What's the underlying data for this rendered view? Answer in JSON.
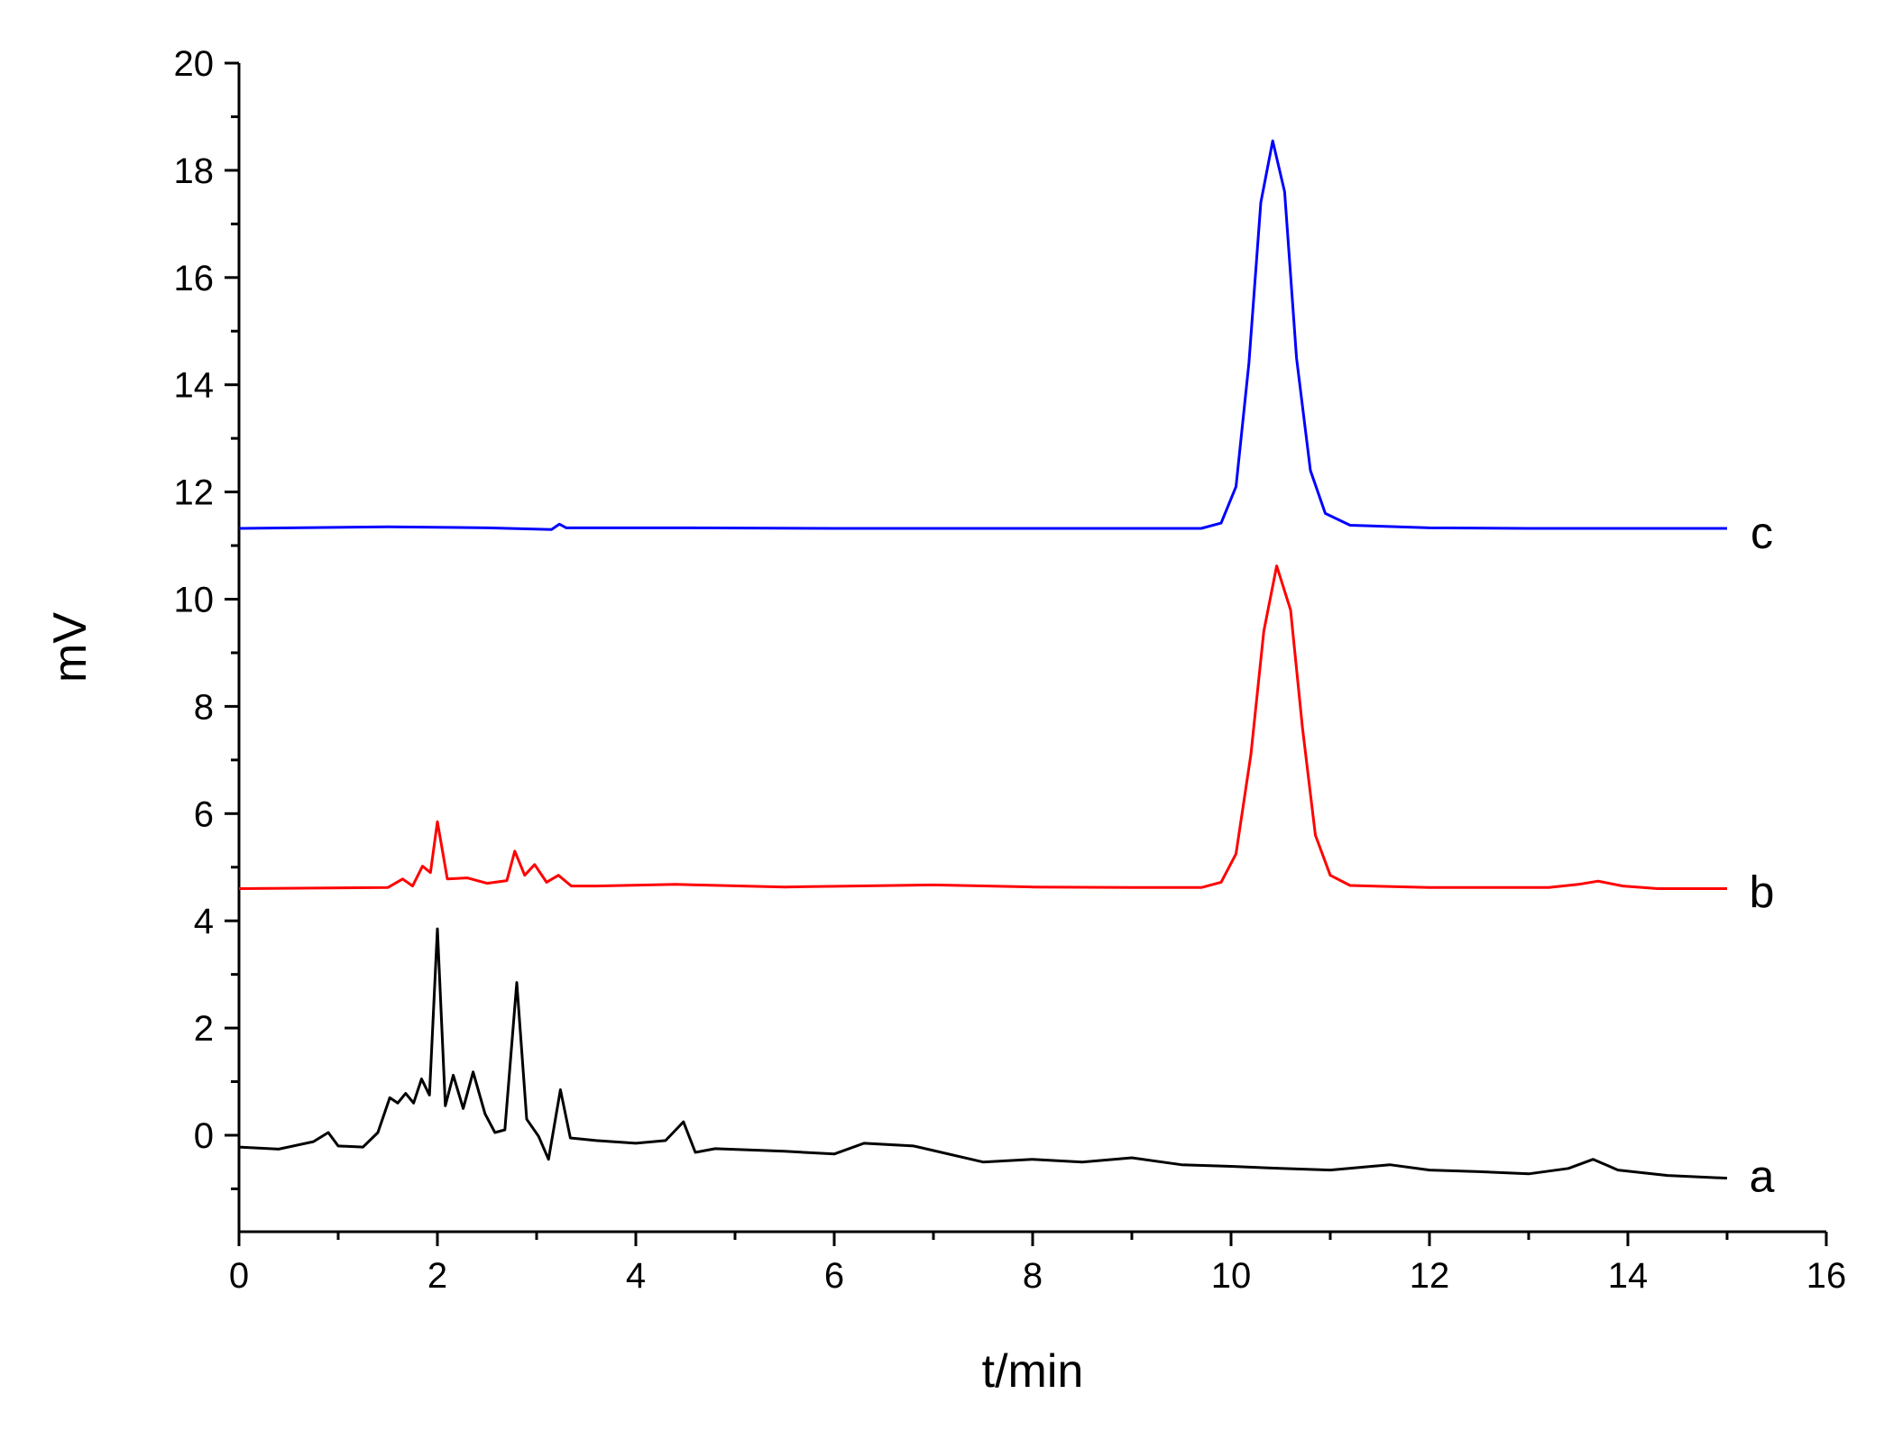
{
  "chart_data": {
    "type": "line",
    "title": "",
    "xlabel": "t/min",
    "ylabel": "mV",
    "xlim": [
      0,
      16
    ],
    "ylim": [
      -1.8,
      20
    ],
    "x_ticks": [
      0,
      2,
      4,
      6,
      8,
      10,
      12,
      14,
      16
    ],
    "y_ticks": [
      0,
      2,
      4,
      6,
      8,
      10,
      12,
      14,
      16,
      18,
      20
    ],
    "grid": false,
    "legend": "none",
    "series": [
      {
        "name": "a",
        "color": "#000000",
        "points": [
          [
            0,
            -0.22
          ],
          [
            0.4,
            -0.26
          ],
          [
            0.75,
            -0.12
          ],
          [
            0.9,
            0.05
          ],
          [
            1.0,
            -0.2
          ],
          [
            1.25,
            -0.22
          ],
          [
            1.4,
            0.05
          ],
          [
            1.52,
            0.7
          ],
          [
            1.6,
            0.6
          ],
          [
            1.68,
            0.78
          ],
          [
            1.76,
            0.6
          ],
          [
            1.84,
            1.05
          ],
          [
            1.92,
            0.75
          ],
          [
            2.0,
            3.85
          ],
          [
            2.08,
            0.55
          ],
          [
            2.16,
            1.12
          ],
          [
            2.26,
            0.5
          ],
          [
            2.36,
            1.18
          ],
          [
            2.48,
            0.4
          ],
          [
            2.58,
            0.05
          ],
          [
            2.68,
            0.1
          ],
          [
            2.8,
            2.85
          ],
          [
            2.9,
            0.3
          ],
          [
            3.02,
            -0.02
          ],
          [
            3.12,
            -0.45
          ],
          [
            3.24,
            0.85
          ],
          [
            3.34,
            -0.05
          ],
          [
            3.6,
            -0.1
          ],
          [
            4.0,
            -0.15
          ],
          [
            4.3,
            -0.1
          ],
          [
            4.48,
            0.25
          ],
          [
            4.6,
            -0.32
          ],
          [
            4.8,
            -0.25
          ],
          [
            5.5,
            -0.3
          ],
          [
            6.0,
            -0.35
          ],
          [
            6.3,
            -0.15
          ],
          [
            6.8,
            -0.2
          ],
          [
            7.5,
            -0.5
          ],
          [
            8.0,
            -0.45
          ],
          [
            8.5,
            -0.5
          ],
          [
            9.0,
            -0.42
          ],
          [
            9.5,
            -0.55
          ],
          [
            10.0,
            -0.58
          ],
          [
            10.5,
            -0.62
          ],
          [
            11.0,
            -0.65
          ],
          [
            11.6,
            -0.55
          ],
          [
            12.0,
            -0.65
          ],
          [
            12.5,
            -0.68
          ],
          [
            13.0,
            -0.72
          ],
          [
            13.4,
            -0.62
          ],
          [
            13.65,
            -0.45
          ],
          [
            13.9,
            -0.65
          ],
          [
            14.4,
            -0.75
          ],
          [
            15.0,
            -0.8
          ]
        ]
      },
      {
        "name": "b",
        "color": "#ff0000",
        "points": [
          [
            0,
            4.6
          ],
          [
            1.5,
            4.62
          ],
          [
            1.65,
            4.78
          ],
          [
            1.75,
            4.65
          ],
          [
            1.85,
            5.02
          ],
          [
            1.93,
            4.9
          ],
          [
            2.0,
            5.85
          ],
          [
            2.1,
            4.78
          ],
          [
            2.3,
            4.8
          ],
          [
            2.5,
            4.7
          ],
          [
            2.7,
            4.75
          ],
          [
            2.78,
            5.3
          ],
          [
            2.88,
            4.85
          ],
          [
            2.98,
            5.05
          ],
          [
            3.1,
            4.72
          ],
          [
            3.22,
            4.85
          ],
          [
            3.35,
            4.65
          ],
          [
            3.6,
            4.65
          ],
          [
            4.4,
            4.68
          ],
          [
            5.5,
            4.63
          ],
          [
            6.2,
            4.65
          ],
          [
            7.0,
            4.67
          ],
          [
            8.0,
            4.63
          ],
          [
            9.0,
            4.62
          ],
          [
            9.7,
            4.62
          ],
          [
            9.9,
            4.72
          ],
          [
            10.05,
            5.25
          ],
          [
            10.2,
            7.1
          ],
          [
            10.33,
            9.4
          ],
          [
            10.46,
            10.62
          ],
          [
            10.6,
            9.8
          ],
          [
            10.72,
            7.6
          ],
          [
            10.85,
            5.6
          ],
          [
            11.0,
            4.85
          ],
          [
            11.2,
            4.66
          ],
          [
            12.0,
            4.62
          ],
          [
            13.2,
            4.62
          ],
          [
            13.5,
            4.68
          ],
          [
            13.7,
            4.74
          ],
          [
            13.95,
            4.65
          ],
          [
            14.3,
            4.6
          ],
          [
            15.0,
            4.6
          ]
        ]
      },
      {
        "name": "c",
        "color": "#0000ff",
        "points": [
          [
            0,
            11.32
          ],
          [
            1.5,
            11.35
          ],
          [
            2.5,
            11.33
          ],
          [
            3.15,
            11.3
          ],
          [
            3.23,
            11.4
          ],
          [
            3.3,
            11.33
          ],
          [
            4.5,
            11.33
          ],
          [
            6.0,
            11.32
          ],
          [
            8.0,
            11.32
          ],
          [
            9.7,
            11.32
          ],
          [
            9.9,
            11.42
          ],
          [
            10.05,
            12.1
          ],
          [
            10.18,
            14.4
          ],
          [
            10.3,
            17.4
          ],
          [
            10.42,
            18.55
          ],
          [
            10.54,
            17.6
          ],
          [
            10.66,
            14.5
          ],
          [
            10.8,
            12.4
          ],
          [
            10.95,
            11.6
          ],
          [
            11.2,
            11.38
          ],
          [
            12.0,
            11.33
          ],
          [
            13.0,
            11.32
          ],
          [
            15.0,
            11.32
          ]
        ]
      }
    ],
    "series_labels": [
      {
        "text": "a",
        "x": 15.35,
        "y": -0.75
      },
      {
        "text": "b",
        "x": 15.35,
        "y": 4.55
      },
      {
        "text": "c",
        "x": 15.35,
        "y": 11.25
      }
    ]
  }
}
